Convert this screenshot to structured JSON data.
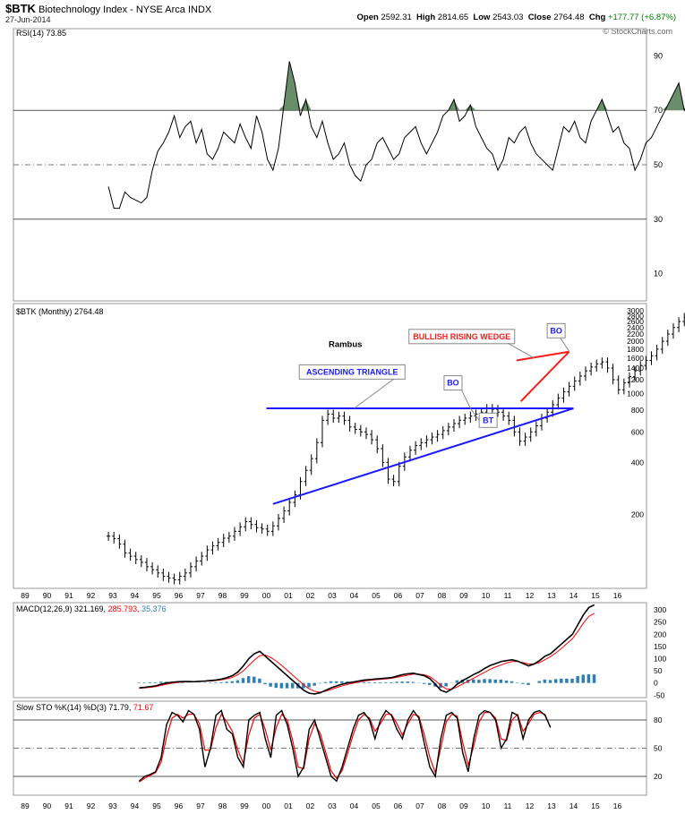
{
  "header": {
    "symbol": "$BTK",
    "name": "Biotechnology Index - NYSE Arca INDX",
    "date": "27-Jun-2014",
    "open_label": "Open",
    "open": "2592.31",
    "high_label": "High",
    "high": "2814.65",
    "low_label": "Low",
    "low": "2543.03",
    "close_label": "Close",
    "close": "2764.48",
    "chg_label": "Chg",
    "chg": "+177.77 (+6.87%)",
    "chg_color": "#008000",
    "credit": "© StockCharts.com"
  },
  "colors": {
    "price": "#000000",
    "trendline": "#1a1aff",
    "wedge": "#ff1a1a",
    "macd_line": "#000000",
    "macd_signal": "#ff0000",
    "macd_hist": "#2f7fb6",
    "rsi_fill": "#4f7a4f",
    "sto_k": "#000000",
    "sto_d": "#ff0000",
    "grid": "#8c8c8c"
  },
  "chart_data": [
    {
      "panel": "rsi",
      "type": "line",
      "label": "RSI(14)",
      "value": "73.85",
      "yticks": [
        "90",
        "70",
        "50",
        "30",
        "10"
      ],
      "ylim": [
        0,
        100
      ],
      "overbought": 70,
      "midline": 50,
      "oversold": 30,
      "x_start": 1992.8,
      "x_step": 0.25,
      "values": [
        42,
        34,
        34,
        40,
        38,
        37,
        36,
        38,
        48,
        55,
        58,
        62,
        68,
        60,
        64,
        66,
        58,
        63,
        54,
        52,
        56,
        62,
        60,
        58,
        65,
        60,
        56,
        68,
        62,
        52,
        48,
        56,
        72,
        88,
        80,
        68,
        74,
        64,
        60,
        66,
        58,
        52,
        54,
        58,
        50,
        46,
        44,
        50,
        52,
        58,
        60,
        56,
        52,
        54,
        60,
        62,
        64,
        58,
        54,
        58,
        62,
        68,
        70,
        74,
        66,
        68,
        72,
        64,
        60,
        56,
        54,
        48,
        52,
        60,
        58,
        62,
        64,
        58,
        54,
        52,
        50,
        48,
        56,
        64,
        62,
        66,
        60,
        58,
        66,
        70,
        74,
        68,
        62,
        64,
        58,
        56,
        48,
        52,
        58,
        60,
        64,
        68,
        72,
        76,
        80,
        70,
        74
      ]
    },
    {
      "panel": "price",
      "type": "line",
      "label": "$BTK (Monthly)",
      "value": "2764.48",
      "scale": "log",
      "ylim": [
        75,
        3300
      ],
      "yticks": [
        "3000",
        "2800",
        "2600",
        "2400",
        "2200",
        "2000",
        "1800",
        "1600",
        "1400",
        "1200",
        "1000",
        "800",
        "600",
        "400",
        "200"
      ],
      "xticks": [
        "89",
        "90",
        "91",
        "92",
        "93",
        "94",
        "95",
        "96",
        "97",
        "98",
        "99",
        "00",
        "01",
        "02",
        "03",
        "04",
        "05",
        "06",
        "07",
        "08",
        "09",
        "10",
        "11",
        "12",
        "13",
        "14",
        "15",
        "16"
      ],
      "x_first_year": 1989,
      "x_start": 1992.8,
      "x_step": 0.25,
      "values": [
        150,
        145,
        135,
        120,
        115,
        110,
        106,
        100,
        96,
        92,
        88,
        86,
        84,
        88,
        92,
        100,
        108,
        115,
        125,
        132,
        138,
        146,
        150,
        160,
        170,
        182,
        175,
        168,
        165,
        160,
        172,
        190,
        210,
        235,
        260,
        310,
        360,
        420,
        520,
        700,
        760,
        720,
        740,
        700,
        640,
        620,
        600,
        580,
        540,
        480,
        400,
        320,
        310,
        380,
        430,
        470,
        500,
        520,
        540,
        560,
        580,
        610,
        640,
        670,
        700,
        720,
        740,
        760,
        780,
        820,
        810,
        780,
        740,
        700,
        600,
        530,
        560,
        600,
        650,
        720,
        780,
        860,
        940,
        1020,
        1100,
        1180,
        1260,
        1350,
        1420,
        1480,
        1520,
        1400,
        1200,
        1050,
        1150,
        1250,
        1350,
        1450,
        1550,
        1650,
        1800,
        2000,
        2200,
        2400,
        2600,
        2750,
        2764
      ]
    },
    {
      "panel": "macd",
      "type": "line",
      "label": "MACD(12,26,9)",
      "macd_value": "321.169",
      "signal_value": "285.793",
      "hist_value": "35.376",
      "yticks": [
        "300",
        "250",
        "200",
        "150",
        "100",
        "50",
        "0",
        "-50"
      ],
      "ylim": [
        -60,
        330
      ],
      "x_start": 1994.2,
      "x_step": 0.25,
      "macd": [
        -20,
        -18,
        -15,
        -12,
        -5,
        0,
        3,
        5,
        6,
        6,
        5,
        7,
        8,
        10,
        12,
        16,
        22,
        30,
        45,
        70,
        100,
        120,
        130,
        110,
        90,
        70,
        50,
        30,
        10,
        -10,
        -30,
        -42,
        -45,
        -40,
        -30,
        -20,
        -12,
        -5,
        0,
        4,
        8,
        12,
        14,
        16,
        18,
        20,
        22,
        28,
        34,
        38,
        40,
        35,
        30,
        18,
        -5,
        -30,
        -38,
        -25,
        -5,
        10,
        22,
        35,
        45,
        60,
        72,
        80,
        88,
        92,
        95,
        90,
        80,
        70,
        78,
        92,
        110,
        120,
        140,
        160,
        180,
        200,
        240,
        280,
        310,
        321
      ],
      "signal": [
        -22,
        -20,
        -18,
        -15,
        -10,
        -5,
        -1,
        2,
        4,
        5,
        5,
        6,
        7,
        8,
        10,
        13,
        17,
        23,
        34,
        50,
        72,
        94,
        112,
        115,
        105,
        90,
        72,
        52,
        32,
        12,
        -8,
        -24,
        -34,
        -38,
        -34,
        -27,
        -19,
        -12,
        -6,
        -1,
        4,
        8,
        11,
        13,
        15,
        17,
        19,
        23,
        28,
        32,
        36,
        36,
        34,
        26,
        10,
        -10,
        -24,
        -26,
        -16,
        -4,
        8,
        20,
        32,
        44,
        56,
        66,
        74,
        82,
        88,
        88,
        84,
        78,
        78,
        84,
        96,
        108,
        124,
        142,
        162,
        182,
        212,
        246,
        274,
        286
      ]
    },
    {
      "panel": "sto",
      "type": "line",
      "label": "Slow STO %K(14) %D(3)",
      "k_value": "71.79",
      "d_value": "71.67",
      "yticks": [
        "80",
        "50",
        "20"
      ],
      "ylim": [
        0,
        100
      ],
      "overbought": 80,
      "midline": 50,
      "oversold": 20,
      "x_start": 1994.2,
      "x_step": 0.25,
      "k": [
        15,
        20,
        22,
        25,
        40,
        75,
        88,
        85,
        78,
        90,
        86,
        70,
        30,
        50,
        85,
        90,
        70,
        65,
        40,
        30,
        80,
        85,
        88,
        60,
        40,
        85,
        90,
        75,
        50,
        20,
        30,
        70,
        80,
        60,
        40,
        20,
        15,
        30,
        50,
        70,
        85,
        88,
        80,
        60,
        80,
        90,
        85,
        70,
        60,
        80,
        90,
        82,
        55,
        30,
        20,
        60,
        85,
        88,
        82,
        45,
        25,
        60,
        85,
        90,
        88,
        80,
        50,
        60,
        88,
        85,
        60,
        80,
        88,
        90,
        85,
        72
      ],
      "d": [
        14,
        18,
        21,
        24,
        35,
        62,
        82,
        86,
        82,
        86,
        86,
        76,
        48,
        48,
        72,
        86,
        78,
        68,
        48,
        34,
        64,
        82,
        86,
        70,
        48,
        72,
        86,
        80,
        58,
        30,
        28,
        60,
        76,
        66,
        46,
        26,
        18,
        26,
        44,
        64,
        80,
        86,
        82,
        68,
        76,
        86,
        86,
        76,
        64,
        76,
        86,
        84,
        64,
        40,
        24,
        50,
        78,
        86,
        84,
        56,
        32,
        52,
        78,
        88,
        88,
        82,
        60,
        58,
        80,
        86,
        68,
        76,
        86,
        88,
        86,
        72
      ]
    }
  ],
  "annotations": {
    "author": "Rambus",
    "triangle_label": "ASCENDING TRIANGLE",
    "wedge_label": "BULLISH RISING WEDGE",
    "bo1": "BO",
    "bt": "BT",
    "bo2": "BO"
  }
}
